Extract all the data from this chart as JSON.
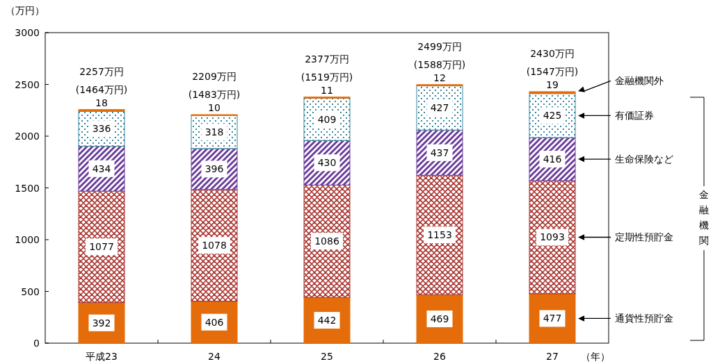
{
  "chart_data": {
    "type": "bar",
    "stacked": true,
    "ylabel": "（万円）",
    "xlabel": "（年）",
    "categories": [
      "平成23",
      "24",
      "25",
      "26",
      "27"
    ],
    "series": [
      {
        "name": "通貨性預貯金",
        "color": "#e46c0a",
        "values": [
          392,
          406,
          442,
          469,
          477
        ]
      },
      {
        "name": "定期性預貯金",
        "color": "#a8322d",
        "values": [
          1077,
          1078,
          1086,
          1153,
          1093
        ]
      },
      {
        "name": "生命保険など",
        "color": "#6a3d9a",
        "values": [
          434,
          396,
          430,
          437,
          416
        ]
      },
      {
        "name": "有価証券",
        "color": "#31859c",
        "values": [
          336,
          318,
          409,
          427,
          425
        ]
      },
      {
        "name": "金融機関外",
        "color": "#e46c0a",
        "values": [
          18,
          10,
          11,
          12,
          19
        ]
      }
    ],
    "data_labels": true,
    "totals": [
      "2257万円\n(1464万円)",
      "2209万円\n(1483万円)",
      "2377万円\n(1519万円)",
      "2499万円\n(1588万円)",
      "2430万円\n(1547万円)"
    ],
    "ylim": [
      0,
      3000
    ],
    "yticks": [
      0,
      500,
      1000,
      1500,
      2000,
      2500,
      3000
    ],
    "legend": "right",
    "annotations": [
      "金融機関"
    ]
  }
}
